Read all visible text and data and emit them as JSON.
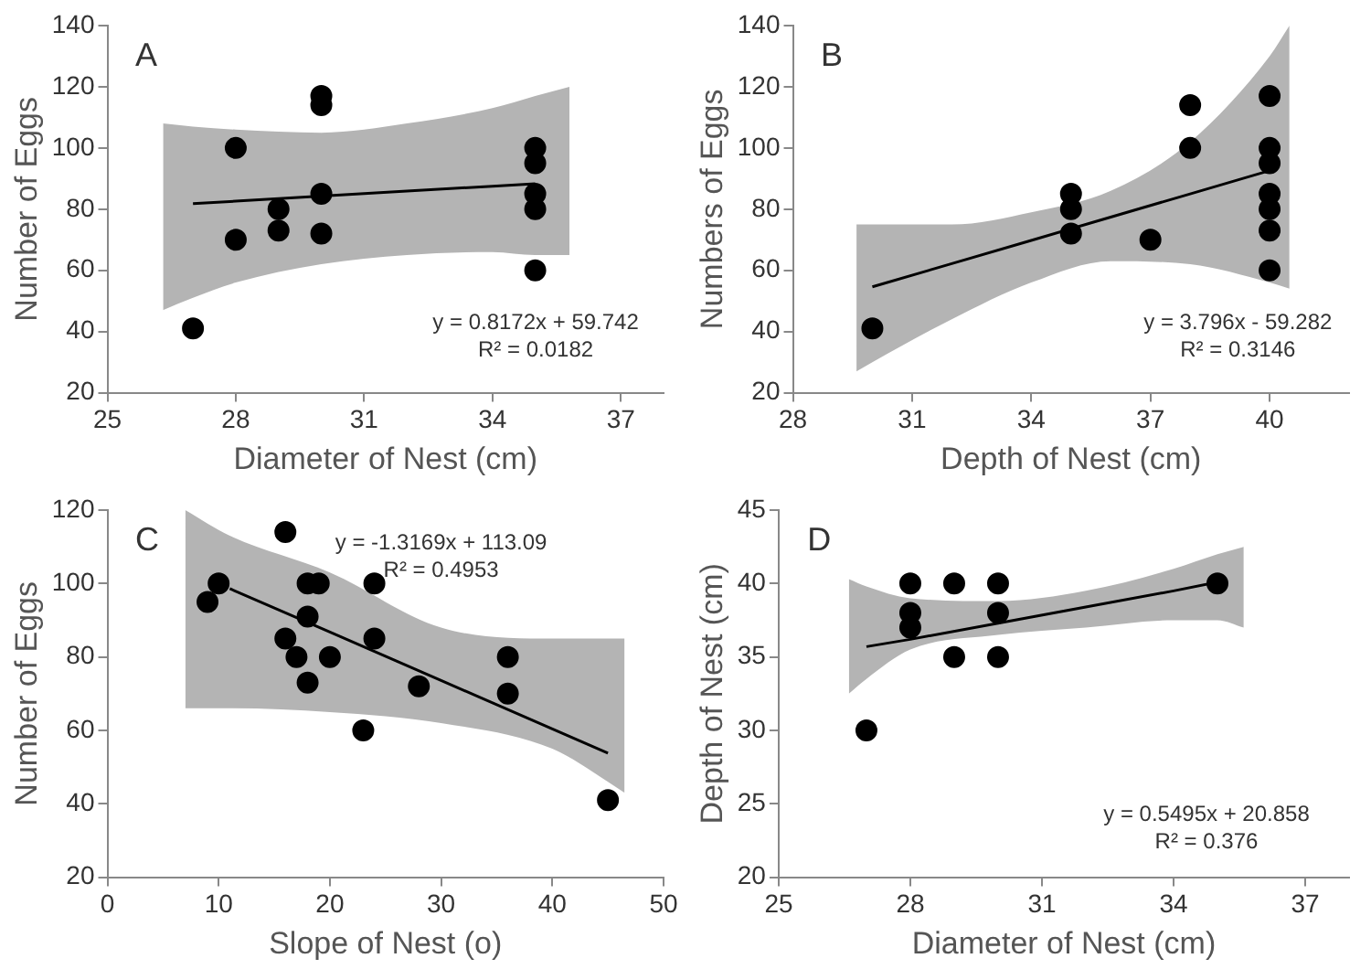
{
  "chart_data": [
    {
      "type": "scatter",
      "xlabel": "Diameter of Nest (cm)",
      "ylabel": "Number of Eggs",
      "xlim": [
        25,
        38
      ],
      "xticks": [
        25,
        28,
        31,
        34,
        37
      ],
      "ylim": [
        20,
        140
      ],
      "yticks": [
        20,
        40,
        60,
        80,
        100,
        120,
        140
      ],
      "annotations": [
        "A",
        "y = 0.8172x + 59.742",
        "R² = 0.0182"
      ],
      "series": [
        {
          "marker": "circle",
          "color": "#000000",
          "x": [
            27,
            28,
            28,
            29,
            29,
            30,
            30,
            30,
            30,
            35,
            35,
            35,
            35,
            35
          ],
          "values": [
            41,
            100,
            70,
            80,
            73,
            117,
            114,
            85,
            72,
            100,
            95,
            85,
            80,
            60
          ]
        },
        {
          "type": "line",
          "marker": "none",
          "color": "#000000",
          "x": [
            26.3,
            27,
            28,
            30,
            32,
            34,
            35,
            35.8
          ],
          "values": [
            null,
            81.8,
            82.6,
            84.3,
            85.9,
            87.5,
            88.3,
            null
          ],
          "lower": [
            47,
            51,
            56,
            62,
            65,
            66,
            65,
            65
          ],
          "upper": [
            108,
            107,
            106,
            105,
            108,
            113,
            117,
            120
          ]
        }
      ]
    },
    {
      "type": "scatter",
      "xlabel": "Depth of Nest (cm)",
      "ylabel": "Numbers of Eggs",
      "xlim": [
        28,
        42
      ],
      "xticks": [
        28,
        31,
        34,
        37,
        40
      ],
      "ylim": [
        20,
        140
      ],
      "yticks": [
        20,
        40,
        60,
        80,
        100,
        120,
        140
      ],
      "annotations": [
        "B",
        "y = 3.796x - 59.282",
        "R² = 0.3146"
      ],
      "series": [
        {
          "marker": "circle",
          "color": "#000000",
          "x": [
            30,
            35,
            35,
            35,
            37,
            38,
            38,
            40,
            40,
            40,
            40,
            40,
            40,
            40
          ],
          "values": [
            41,
            85,
            80,
            72,
            70,
            114,
            100,
            117,
            100,
            95,
            85,
            80,
            73,
            60
          ]
        },
        {
          "type": "line",
          "marker": "none",
          "color": "#000000",
          "x": [
            29.6,
            30,
            32,
            34,
            36,
            38,
            40,
            40.5
          ],
          "values": [
            null,
            54.6,
            62.2,
            69.8,
            77.4,
            85,
            92.6,
            null
          ],
          "lower": [
            27,
            30,
            44,
            56,
            63,
            62,
            56,
            54
          ],
          "upper": [
            75,
            75,
            75,
            79,
            86,
            102,
            130,
            140
          ]
        }
      ]
    },
    {
      "type": "scatter",
      "xlabel": "Slope of Nest (o)",
      "ylabel": "Number of Eggs",
      "xlim": [
        0,
        50
      ],
      "xticks": [
        0,
        10,
        20,
        30,
        40,
        50
      ],
      "ylim": [
        20,
        120
      ],
      "yticks": [
        20,
        40,
        60,
        80,
        100,
        120
      ],
      "annotations": [
        "C",
        "y = -1.3169x + 113.09",
        "R² = 0.4953"
      ],
      "series": [
        {
          "marker": "circle",
          "color": "#000000",
          "x": [
            9,
            10,
            16,
            16,
            17,
            18,
            18,
            18,
            19,
            20,
            23,
            24,
            24,
            28,
            36,
            36,
            45
          ],
          "values": [
            95,
            100,
            114,
            85,
            80,
            100,
            91,
            73,
            100,
            80,
            60,
            100,
            85,
            72,
            80,
            70,
            41
          ]
        },
        {
          "type": "line",
          "marker": "none",
          "color": "#000000",
          "x": [
            7,
            11,
            20,
            30,
            40,
            45,
            46.5
          ],
          "values": [
            null,
            98.6,
            86.8,
            73.6,
            60.4,
            53.8,
            null
          ],
          "lower": [
            66,
            66,
            65,
            62,
            55,
            46,
            43
          ],
          "upper": [
            120,
            113,
            103,
            88,
            85,
            85,
            85
          ]
        }
      ]
    },
    {
      "type": "scatter",
      "xlabel": "Diameter of Nest (cm)",
      "ylabel": "Depth of Nest (cm)",
      "xlim": [
        25,
        38
      ],
      "xticks": [
        25,
        28,
        31,
        34,
        37
      ],
      "ylim": [
        20,
        45
      ],
      "yticks": [
        20,
        25,
        30,
        35,
        40,
        45
      ],
      "annotations": [
        "D",
        "y = 0.5495x + 20.858",
        "R² = 0.376"
      ],
      "series": [
        {
          "marker": "circle",
          "color": "#000000",
          "x": [
            27,
            28,
            28,
            28,
            29,
            29,
            30,
            30,
            30,
            35
          ],
          "values": [
            30,
            40,
            38,
            37,
            40,
            35,
            40,
            38,
            35,
            40
          ]
        },
        {
          "type": "line",
          "marker": "none",
          "color": "#000000",
          "x": [
            26.6,
            27,
            28,
            30,
            32,
            34,
            35,
            35.6
          ],
          "values": [
            null,
            35.7,
            36.2,
            37.3,
            38.4,
            39.5,
            40.1,
            null
          ],
          "lower": [
            32.5,
            33.5,
            35.5,
            36.5,
            37,
            37.5,
            37.5,
            37
          ],
          "upper": [
            40.3,
            39.8,
            39,
            38.8,
            39.5,
            41,
            42,
            42.5
          ]
        }
      ]
    }
  ]
}
